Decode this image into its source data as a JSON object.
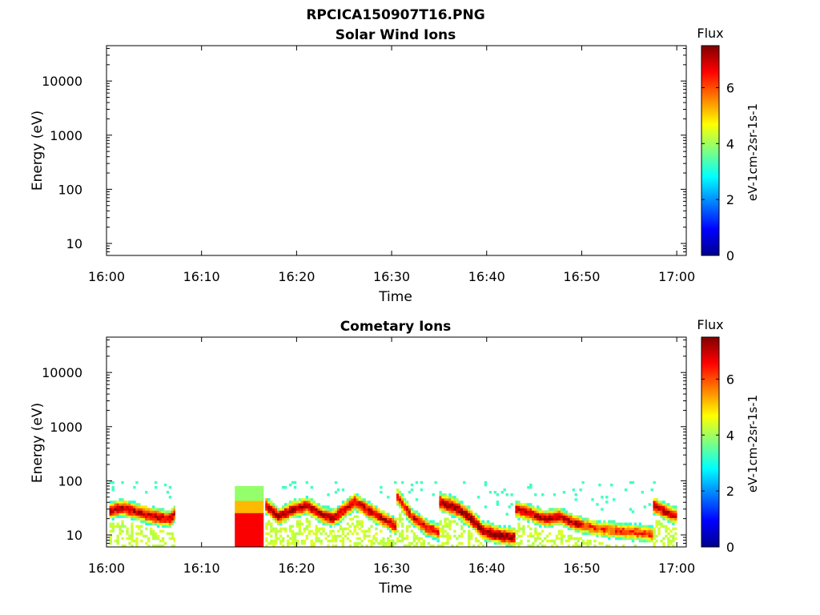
{
  "figure": {
    "filename": "RPCICA150907T16.PNG"
  },
  "chart_data": [
    {
      "type": "heatmap",
      "title": "Solar Wind Ions",
      "xlabel": "Time",
      "ylabel": "Energy (eV)",
      "x_ticks": [
        "16:00",
        "16:10",
        "16:20",
        "16:30",
        "16:40",
        "16:50",
        "17:00"
      ],
      "x_range_minutes_after_16h": [
        0,
        61
      ],
      "y_scale": "log",
      "y_ticks": [
        "10",
        "100",
        "1000",
        "10000"
      ],
      "ylim": [
        6,
        45000
      ],
      "colorbar": {
        "title": "Flux",
        "label": "eV-1cm-2sr-1s-1",
        "ticks": [
          "0",
          "2",
          "4",
          "6"
        ],
        "range": [
          0,
          7.5
        ],
        "colormap": "jet"
      },
      "data": []
    },
    {
      "type": "heatmap",
      "title": "Cometary Ions",
      "xlabel": "Time",
      "ylabel": "Energy (eV)",
      "x_ticks": [
        "16:00",
        "16:10",
        "16:20",
        "16:30",
        "16:40",
        "16:50",
        "17:00"
      ],
      "x_range_minutes_after_16h": [
        0,
        61
      ],
      "y_scale": "log",
      "y_ticks": [
        "10",
        "100",
        "1000",
        "10000"
      ],
      "ylim": [
        6,
        45000
      ],
      "colorbar": {
        "title": "Flux",
        "label": "eV-1cm-2sr-1s-1",
        "ticks": [
          "0",
          "2",
          "4",
          "6"
        ],
        "range": [
          0,
          7.5
        ],
        "colormap": "jet"
      },
      "segments": [
        {
          "t0": 0.3,
          "t1": 7.2,
          "peak": [
            [
              0.3,
              28
            ],
            [
              1.5,
              32
            ],
            [
              3,
              27
            ],
            [
              5,
              22
            ],
            [
              6.5,
              20
            ],
            [
              7.2,
              26
            ]
          ],
          "width": 0.2,
          "max_flux": 7.0
        },
        {
          "t0": 13.5,
          "t1": 16.5,
          "peak": [
            [
              13.5,
              12
            ],
            [
              16.5,
              12
            ]
          ],
          "width": 0.35,
          "max_flux": 6.6,
          "blocky": true
        },
        {
          "t0": 16.7,
          "t1": 24.0,
          "peak": [
            [
              16.7,
              35
            ],
            [
              18,
              22
            ],
            [
              19.5,
              30
            ],
            [
              21,
              35
            ],
            [
              22.5,
              24
            ],
            [
              24,
              20
            ]
          ],
          "width": 0.2,
          "max_flux": 7.2
        },
        {
          "t0": 24.0,
          "t1": 30.5,
          "peak": [
            [
              24,
              22
            ],
            [
              26,
              42
            ],
            [
              27.5,
              28
            ],
            [
              29,
              20
            ],
            [
              30.5,
              14
            ]
          ],
          "width": 0.2,
          "max_flux": 7.0
        },
        {
          "t0": 30.5,
          "t1": 35.0,
          "peak": [
            [
              30.5,
              50
            ],
            [
              32,
              22
            ],
            [
              33.5,
              14
            ],
            [
              35,
              11
            ]
          ],
          "width": 0.2,
          "max_flux": 6.8
        },
        {
          "t0": 35.0,
          "t1": 43.0,
          "peak": [
            [
              35,
              40
            ],
            [
              36.5,
              33
            ],
            [
              38,
              22
            ],
            [
              39.5,
              12
            ],
            [
              41,
              10
            ],
            [
              43,
              9
            ]
          ],
          "width": 0.22,
          "max_flux": 7.3
        },
        {
          "t0": 43.0,
          "t1": 50.0,
          "peak": [
            [
              43,
              30
            ],
            [
              44.5,
              25
            ],
            [
              46,
              20
            ],
            [
              47.5,
              22
            ],
            [
              49,
              17
            ],
            [
              50,
              15
            ]
          ],
          "width": 0.2,
          "max_flux": 7.0
        },
        {
          "t0": 50.0,
          "t1": 57.5,
          "peak": [
            [
              50,
              15
            ],
            [
              52,
              13
            ],
            [
              54,
              12
            ],
            [
              56,
              11
            ],
            [
              57.5,
              10
            ]
          ],
          "width": 0.2,
          "max_flux": 6.2
        },
        {
          "t0": 57.5,
          "t1": 60.0,
          "peak": [
            [
              57.5,
              35
            ],
            [
              58.5,
              28
            ],
            [
              60,
              22
            ]
          ],
          "width": 0.2,
          "max_flux": 7.0
        }
      ]
    }
  ]
}
